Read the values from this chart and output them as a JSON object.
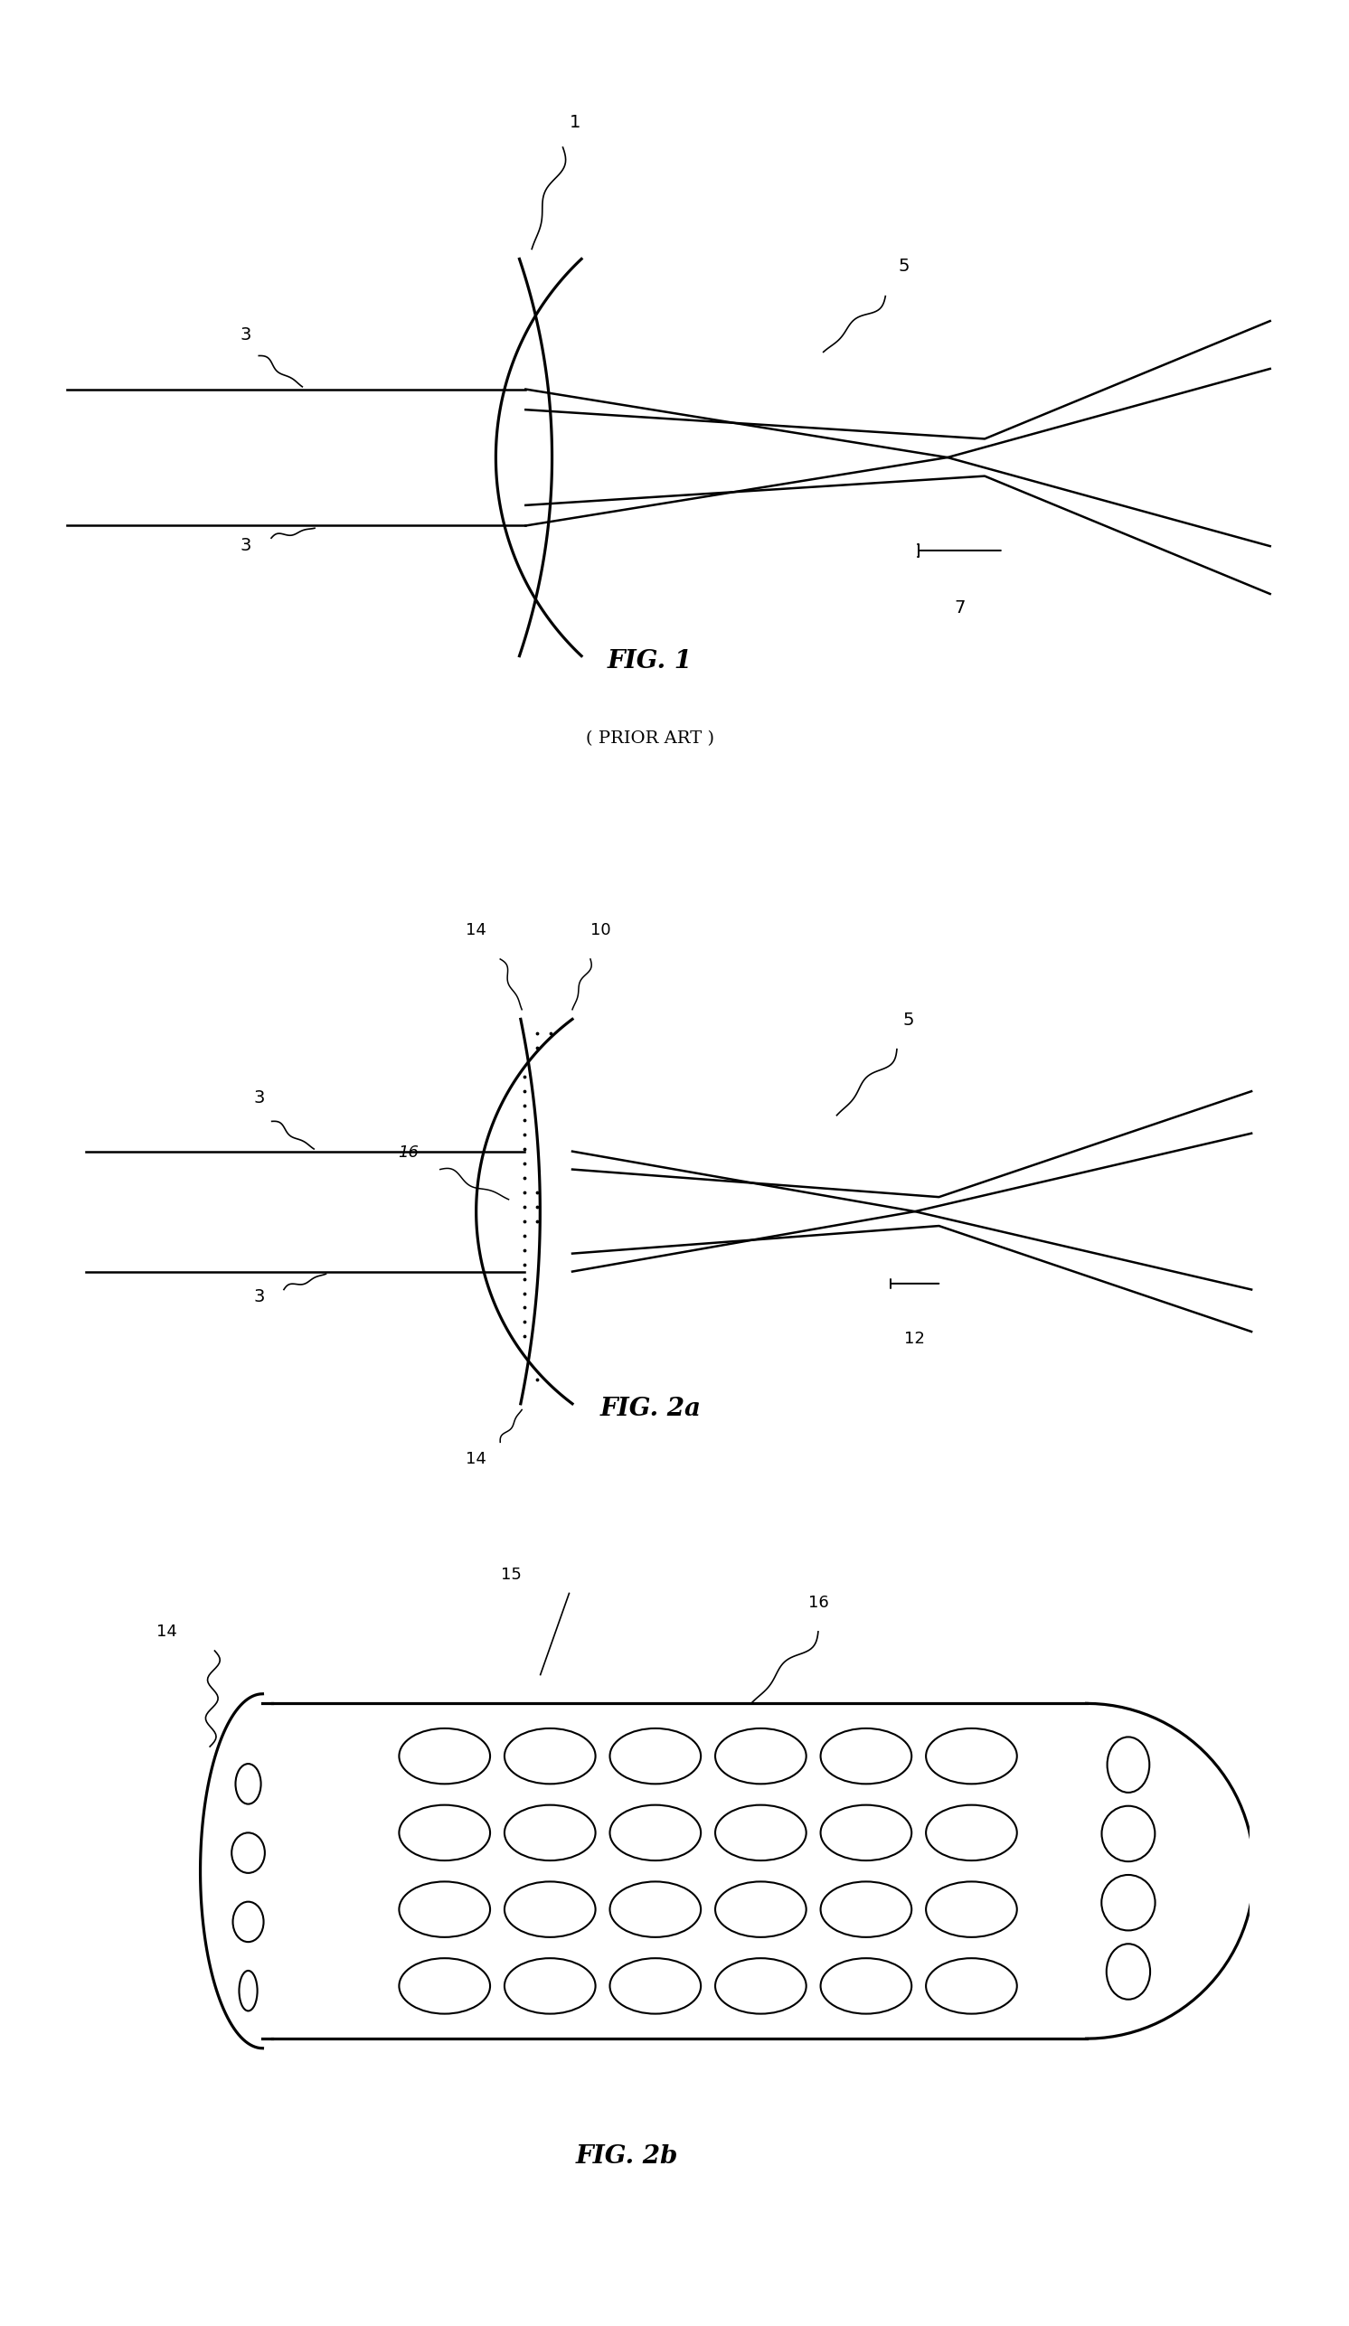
{
  "bg_color": "#ffffff",
  "lc": "#000000",
  "lw": 1.8,
  "fig_width": 14.92,
  "fig_height": 25.73,
  "fig1_title": "FIG. 1",
  "fig1_subtitle": "( PRIOR ART )",
  "fig2a_title": "FIG. 2a",
  "fig2b_title": "FIG. 2b",
  "label_fs": 14,
  "title_fs": 20,
  "subtitle_fs": 14
}
